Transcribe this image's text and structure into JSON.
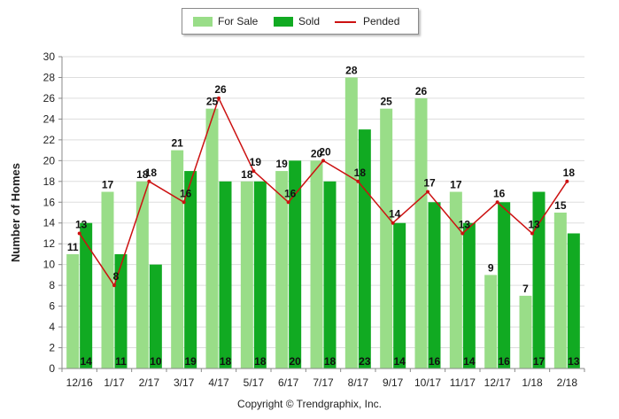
{
  "legend": {
    "for_sale": "For Sale",
    "sold": "Sold",
    "pended": "Pended"
  },
  "copyright": "Copyright © Trendgraphix, Inc.",
  "colors": {
    "for_sale": "#99dd88",
    "sold": "#11aa22",
    "pended": "#cc1111"
  },
  "chart_data": {
    "type": "bar",
    "title": "",
    "xlabel": "",
    "ylabel": "Number of Homes",
    "ylim": [
      0,
      30
    ],
    "ytick_step": 2,
    "grid": true,
    "legend_position": "top-center",
    "categories": [
      "12/16",
      "1/17",
      "2/17",
      "3/17",
      "4/17",
      "5/17",
      "6/17",
      "7/17",
      "8/17",
      "9/17",
      "10/17",
      "11/17",
      "12/17",
      "1/18",
      "2/18"
    ],
    "series": [
      {
        "name": "For Sale",
        "kind": "bar",
        "values": [
          11,
          17,
          18,
          21,
          25,
          18,
          19,
          20,
          28,
          25,
          26,
          17,
          9,
          7,
          15
        ]
      },
      {
        "name": "Sold",
        "kind": "bar",
        "values": [
          14,
          11,
          10,
          19,
          18,
          18,
          20,
          18,
          23,
          14,
          16,
          14,
          16,
          17,
          13
        ]
      },
      {
        "name": "Pended",
        "kind": "line",
        "values": [
          13,
          8,
          18,
          16,
          26,
          19,
          16,
          20,
          18,
          14,
          17,
          13,
          16,
          13,
          18
        ]
      }
    ]
  }
}
